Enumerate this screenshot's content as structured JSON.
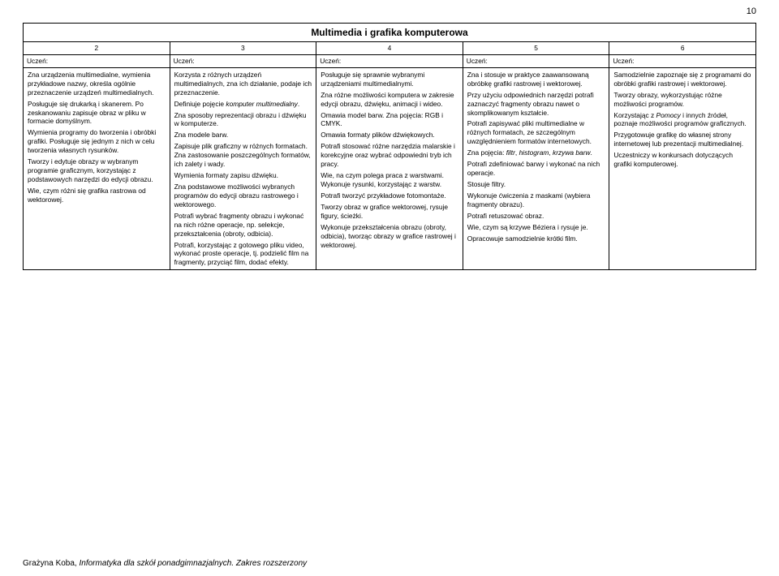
{
  "pageNumber": "10",
  "title": "Multimedia i grafika komputerowa",
  "headers": [
    "2",
    "3",
    "4",
    "5",
    "6"
  ],
  "subheaders": [
    "Uczeń:",
    "Uczeń:",
    "Uczeń:",
    "Uczeń:",
    "Uczeń:"
  ],
  "cols": [
    [
      {
        "t": "Zna urządzenia multimedialne, wymienia przykładowe nazwy, określa ogólnie przeznaczenie urządzeń multimedialnych."
      },
      {
        "t": "Posługuje się drukarką i skanerem. Po zeskanowaniu zapisuje obraz w pliku w formacie domyślnym."
      },
      {
        "t": "Wymienia programy do tworzenia i obróbki grafiki. Posługuje się jednym z nich w celu tworzenia własnych rysunków."
      },
      {
        "t": "Tworzy i edytuje obrazy w wybranym programie graficznym, korzystając z podstawowych narzędzi do edycji obrazu."
      },
      {
        "t": "Wie, czym różni się grafika rastrowa od wektorowej."
      }
    ],
    [
      {
        "t": "Korzysta z różnych urządzeń multimedialnych, zna ich działanie, podaje ich przeznaczenie."
      },
      {
        "t": "Definiuje pojęcie <span class=\"italic\">komputer multimedialny</span>."
      },
      {
        "t": "Zna sposoby reprezentacji obrazu i dźwięku w komputerze."
      },
      {
        "t": "Zna modele barw."
      },
      {
        "t": "Zapisuje plik graficzny w różnych formatach. Zna zastosowanie poszczególnych formatów, ich zalety i wady."
      },
      {
        "t": "Wymienia formaty zapisu dźwięku."
      },
      {
        "t": "Zna podstawowe możliwości wybranych programów do edycji obrazu rastrowego i wektorowego."
      },
      {
        "t": "Potrafi wybrać fragmenty obrazu i wykonać na nich różne operacje, np. selekcje, przekształcenia (obroty, odbicia)."
      },
      {
        "t": "Potrafi, korzystając z gotowego pliku video, wykonać proste operacje, tj. podzielić film na fragmenty, przyciąć film, dodać efekty."
      }
    ],
    [
      {
        "t": "Posługuje się sprawnie wybranymi urządzeniami multimedialnymi."
      },
      {
        "t": "Zna różne możliwości komputera w zakresie edycji obrazu, dźwięku, animacji i wideo."
      },
      {
        "t": "Omawia model barw. Zna pojęcia: RGB i CMYK."
      },
      {
        "t": "Omawia formaty plików dźwiękowych."
      },
      {
        "t": "Potrafi stosować różne narzędzia malarskie i korekcyjne oraz wybrać odpowiedni tryb ich pracy."
      },
      {
        "t": "Wie, na czym polega praca z warstwami. Wykonuje rysunki, korzystając z warstw."
      },
      {
        "t": "Potrafi tworzyć przykładowe fotomontaże."
      },
      {
        "t": "Tworzy obraz w grafice wektorowej, rysuje figury, ścieżki."
      },
      {
        "t": "Wykonuje przekształcenia obrazu (obroty, odbicia), tworząc obrazy w grafice rastrowej i wektorowej."
      }
    ],
    [
      {
        "t": "Zna i stosuje w praktyce zaawansowaną obróbkę grafiki rastrowej i wektorowej."
      },
      {
        "t": "Przy użyciu odpowiednich narzędzi potrafi zaznaczyć fragmenty obrazu nawet o skomplikowanym kształcie."
      },
      {
        "t": "Potrafi zapisywać pliki multimedialne w różnych formatach, ze szczególnym uwzględnieniem formatów internetowych."
      },
      {
        "t": "Zna pojęcia: <span class=\"italic\">filtr</span>, <span class=\"italic\">histogram</span>, <span class=\"italic\">krzywa barw</span>."
      },
      {
        "t": "Potrafi zdefiniować barwy i wykonać na nich operacje."
      },
      {
        "t": "Stosuje filtry."
      },
      {
        "t": "Wykonuje ćwiczenia z maskami (wybiera fragmenty obrazu)."
      },
      {
        "t": "Potrafi retuszować obraz."
      },
      {
        "t": "Wie, czym są krzywe Béziera i rysuje je."
      },
      {
        "t": "Opracowuje samodzielnie krótki film."
      }
    ],
    [
      {
        "t": "Samodzielnie zapoznaje się z programami do obróbki grafiki rastrowej i wektorowej."
      },
      {
        "t": "Tworzy obrazy, wykorzystując różne możliwości programów."
      },
      {
        "t": "Korzystając z <span class=\"italic\">Pomocy</span> i innych źródeł, poznaje możliwości programów graficznych."
      },
      {
        "t": "Przygotowuje grafikę do własnej strony internetowej lub prezentacji multimedialnej."
      },
      {
        "t": "Uczestniczy w konkursach dotyczących grafiki komputerowej."
      }
    ]
  ],
  "footer": {
    "author": "Grażyna Koba, ",
    "book": "Informatyka dla szkół ponadgimnazjalnych. Zakres rozszerzony"
  }
}
